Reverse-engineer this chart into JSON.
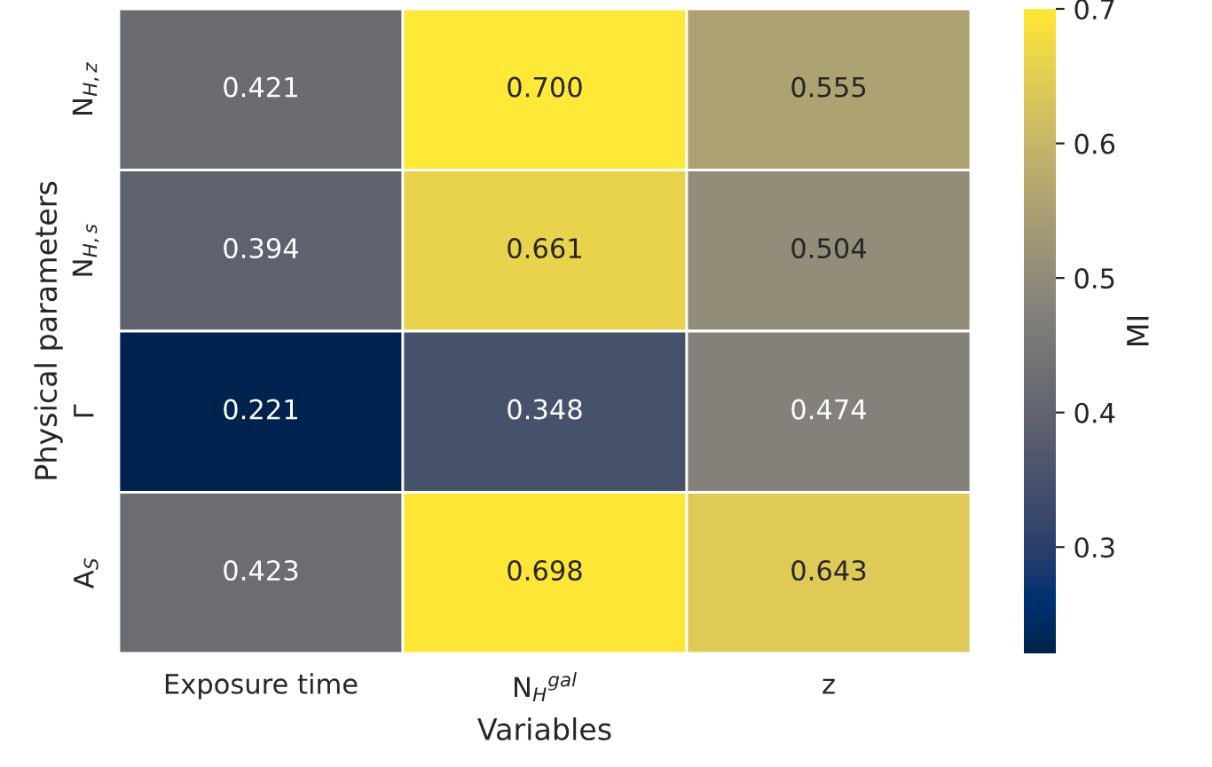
{
  "chart_data": {
    "type": "heatmap",
    "xlabel": "Variables",
    "ylabel": "Physical parameters",
    "clabel": "MI",
    "categories": [
      "Exposure time",
      "N$_{H}$$^{gal}$",
      "z"
    ],
    "y_categories": [
      "N$_{H,z}$",
      "N$_{H,s}$",
      "Γ",
      "A$_{S}$"
    ],
    "cells": [
      [
        0.421,
        0.7,
        0.555
      ],
      [
        0.394,
        0.661,
        0.504
      ],
      [
        0.221,
        0.348,
        0.474
      ],
      [
        0.423,
        0.698,
        0.643
      ]
    ],
    "cell_labels": [
      [
        "0.421",
        "0.700",
        "0.555"
      ],
      [
        "0.394",
        "0.661",
        "0.504"
      ],
      [
        "0.221",
        "0.348",
        "0.474"
      ],
      [
        "0.423",
        "0.698",
        "0.643"
      ]
    ],
    "clim": [
      0.221,
      0.7
    ],
    "cticks": [
      0.3,
      0.4,
      0.5,
      0.6,
      0.7
    ],
    "data_labels": true
  }
}
